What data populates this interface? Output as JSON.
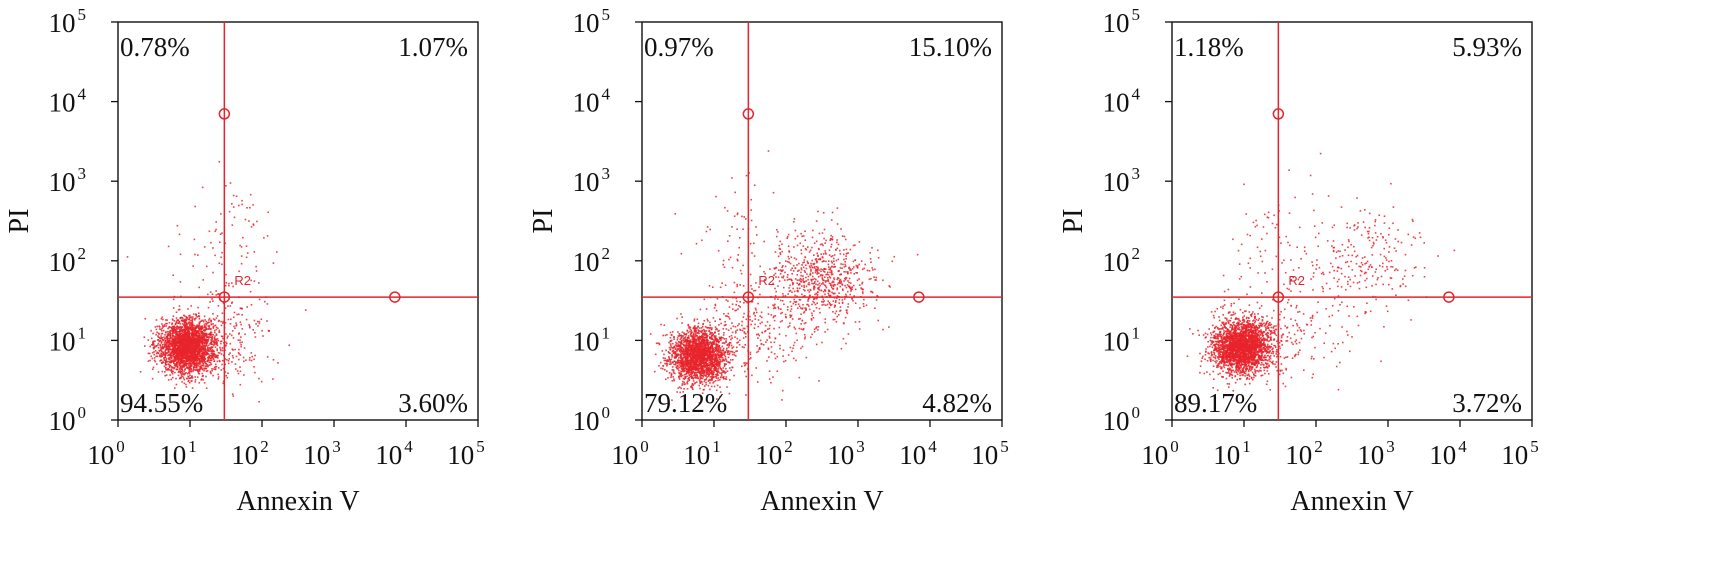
{
  "chart_data": [
    {
      "type": "scatter",
      "title": "",
      "xlabel": "Annexin V",
      "ylabel": "PI",
      "x_scale": "log",
      "y_scale": "log",
      "xlim": [
        1,
        100000
      ],
      "ylim": [
        1,
        100000
      ],
      "x_ticks": [
        1,
        10,
        100,
        1000,
        10000,
        100000
      ],
      "y_ticks": [
        1,
        10,
        100,
        1000,
        10000,
        100000
      ],
      "gate": {
        "x": 30,
        "y": 35,
        "label": "R2"
      },
      "gate_markers": [
        [
          30,
          7000
        ],
        [
          30,
          35
        ],
        [
          7000,
          35
        ]
      ],
      "quadrants": {
        "upper_left": "0.78%",
        "upper_right": "1.07%",
        "lower_left": "94.55%",
        "lower_right": "3.60%"
      },
      "populations": [
        {
          "center": [
            9,
            8.5
          ],
          "spread": [
            0.2,
            0.17
          ],
          "count": 2600
        },
        {
          "center": [
            30,
            12
          ],
          "spread": [
            0.38,
            0.3
          ],
          "count": 230
        },
        {
          "center": [
            30,
            150
          ],
          "spread": [
            0.35,
            0.45
          ],
          "count": 90
        }
      ]
    },
    {
      "type": "scatter",
      "title": "",
      "xlabel": "Annexin V",
      "ylabel": "PI",
      "x_scale": "log",
      "y_scale": "log",
      "xlim": [
        1,
        100000
      ],
      "ylim": [
        1,
        100000
      ],
      "x_ticks": [
        1,
        10,
        100,
        1000,
        10000,
        100000
      ],
      "y_ticks": [
        1,
        10,
        100,
        1000,
        10000,
        100000
      ],
      "gate": {
        "x": 30,
        "y": 35,
        "label": "R2"
      },
      "gate_markers": [
        [
          30,
          7000
        ],
        [
          30,
          35
        ],
        [
          7000,
          35
        ]
      ],
      "quadrants": {
        "upper_left": "0.97%",
        "upper_right": "15.10%",
        "lower_left": "79.12%",
        "lower_right": "4.82%"
      },
      "populations": [
        {
          "center": [
            6,
            6.5
          ],
          "spread": [
            0.2,
            0.17
          ],
          "count": 2200
        },
        {
          "center": [
            300,
            60
          ],
          "spread": [
            0.35,
            0.3
          ],
          "count": 700
        },
        {
          "center": [
            40,
            15
          ],
          "spread": [
            0.45,
            0.3
          ],
          "count": 300
        },
        {
          "center": [
            20,
            200
          ],
          "spread": [
            0.35,
            0.4
          ],
          "count": 60
        }
      ]
    },
    {
      "type": "scatter",
      "title": "",
      "xlabel": "Annexin V",
      "ylabel": "PI",
      "x_scale": "log",
      "y_scale": "log",
      "xlim": [
        1,
        100000
      ],
      "ylim": [
        1,
        100000
      ],
      "x_ticks": [
        1,
        10,
        100,
        1000,
        10000,
        100000
      ],
      "y_ticks": [
        1,
        10,
        100,
        1000,
        10000,
        100000
      ],
      "gate": {
        "x": 30,
        "y": 35,
        "label": "R2"
      },
      "gate_markers": [
        [
          30,
          7000
        ],
        [
          30,
          35
        ],
        [
          7000,
          35
        ]
      ],
      "quadrants": {
        "upper_left": "1.18%",
        "upper_right": "5.93%",
        "lower_left": "89.17%",
        "lower_right": "3.72%"
      },
      "populations": [
        {
          "center": [
            9,
            8.5
          ],
          "spread": [
            0.2,
            0.17
          ],
          "count": 2500
        },
        {
          "center": [
            400,
            100
          ],
          "spread": [
            0.45,
            0.35
          ],
          "count": 260
        },
        {
          "center": [
            30,
            12
          ],
          "spread": [
            0.4,
            0.28
          ],
          "count": 200
        },
        {
          "center": [
            20,
            180
          ],
          "spread": [
            0.3,
            0.4
          ],
          "count": 60
        }
      ]
    }
  ],
  "colors": {
    "dots": "#e8232b",
    "gate_line": "#e3262e",
    "axis": "#111111",
    "background": "#ffffff"
  }
}
